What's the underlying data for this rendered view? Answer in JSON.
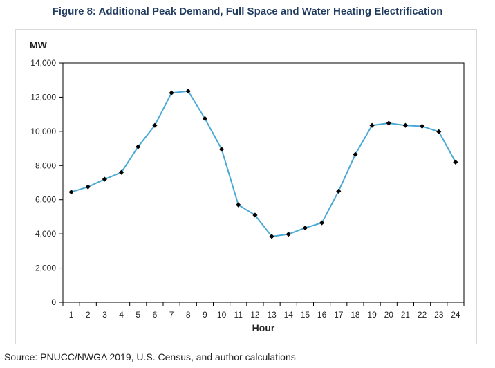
{
  "figure": {
    "title": "Figure 8: Additional Peak Demand, Full Space and Water Heating Electrification",
    "source": "Source: PNUCC/NWGA 2019, U.S. Census, and author calculations"
  },
  "colors": {
    "line": "#4aa9d6",
    "marker": "#000000",
    "axis": "#000000",
    "title": "#1f3a5f"
  },
  "chart_data": {
    "type": "line",
    "title": "Figure 8: Additional Peak Demand, Full Space and Water Heating Electrification",
    "xlabel": "Hour",
    "ylabel": "MW",
    "ylim": [
      0,
      14000
    ],
    "yticks": [
      0,
      2000,
      4000,
      6000,
      8000,
      10000,
      12000,
      14000
    ],
    "ytick_labels": [
      "0",
      "2,000",
      "4,000",
      "6,000",
      "8,000",
      "10,000",
      "12,000",
      "14,000"
    ],
    "categories": [
      "1",
      "2",
      "3",
      "4",
      "5",
      "6",
      "7",
      "8",
      "9",
      "10",
      "11",
      "12",
      "13",
      "14",
      "15",
      "16",
      "17",
      "18",
      "19",
      "20",
      "21",
      "22",
      "23",
      "24"
    ],
    "series": [
      {
        "name": "Additional Peak Demand",
        "values": [
          6450,
          6750,
          7200,
          7600,
          9100,
          10350,
          12250,
          12350,
          10750,
          8950,
          5700,
          5100,
          3850,
          3980,
          4350,
          4650,
          6500,
          8650,
          10350,
          10480,
          10350,
          10300,
          9980,
          8200
        ]
      }
    ],
    "grid": false,
    "legend": "none"
  }
}
